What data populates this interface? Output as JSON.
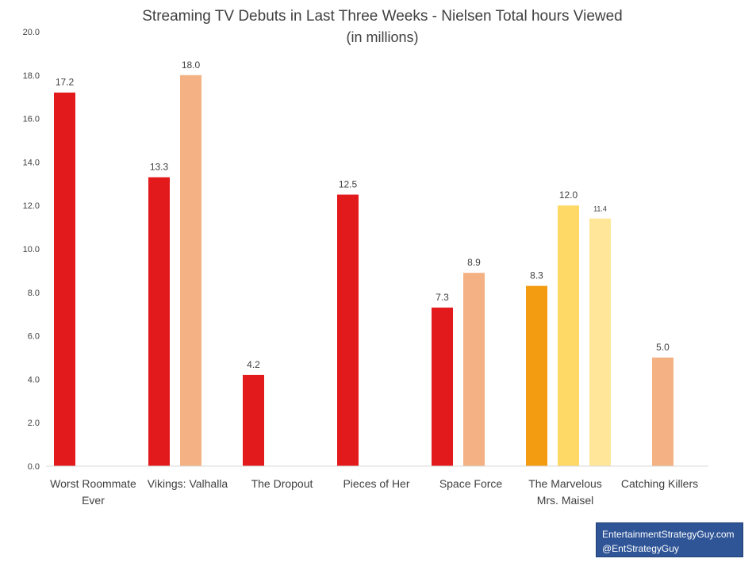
{
  "chart_data": {
    "type": "bar",
    "title": "Streaming TV Debuts in Last Three Weeks - Nielsen Total hours Viewed",
    "subtitle": "(in millions)",
    "ylim": [
      0,
      20
    ],
    "yticks": [
      "0.0",
      "2.0",
      "4.0",
      "6.0",
      "8.0",
      "10.0",
      "12.0",
      "14.0",
      "16.0",
      "18.0",
      "20.0"
    ],
    "grid": false,
    "legend": "none",
    "categories": [
      {
        "name": "Worst Roommate Ever",
        "lines": [
          "Worst Roommate",
          "Ever"
        ],
        "bars": [
          {
            "value": 17.2,
            "label": "17.2",
            "color": "#e31a1c"
          }
        ]
      },
      {
        "name": "Vikings: Valhalla",
        "lines": [
          "Vikings: Valhalla"
        ],
        "bars": [
          {
            "value": 13.3,
            "label": "13.3",
            "color": "#e31a1c"
          },
          {
            "value": 18.0,
            "label": "18.0",
            "color": "#f4b183"
          }
        ]
      },
      {
        "name": "The Dropout",
        "lines": [
          "The Dropout"
        ],
        "bars": [
          {
            "value": 4.2,
            "label": "4.2",
            "color": "#e31a1c"
          }
        ]
      },
      {
        "name": "Pieces of Her",
        "lines": [
          "Pieces of Her"
        ],
        "bars": [
          {
            "value": 12.5,
            "label": "12.5",
            "color": "#e31a1c"
          }
        ]
      },
      {
        "name": "Space Force",
        "lines": [
          "Space Force"
        ],
        "bars": [
          {
            "value": 7.3,
            "label": "7.3",
            "color": "#e31a1c"
          },
          {
            "value": 8.9,
            "label": "8.9",
            "color": "#f4b183"
          }
        ]
      },
      {
        "name": "The Marvelous Mrs. Maisel",
        "lines": [
          "The Marvelous",
          "Mrs. Maisel"
        ],
        "bars": [
          {
            "value": 8.3,
            "label": "8.3",
            "color": "#f39c12"
          },
          {
            "value": 12.0,
            "label": "12.0",
            "color": "#ffd966"
          },
          {
            "value": 11.4,
            "label": "11.4",
            "color": "#ffe699",
            "small": true
          }
        ]
      },
      {
        "name": "Catching Killers",
        "lines": [
          "Catching Killers"
        ],
        "bars": [
          {
            "skip": true
          },
          {
            "value": 5.0,
            "label": "5.0",
            "color": "#f4b183"
          }
        ]
      }
    ]
  },
  "credit": {
    "line1": "EntertainmentStrategyGuy.com",
    "line2": "@EntStrategyGuy"
  }
}
